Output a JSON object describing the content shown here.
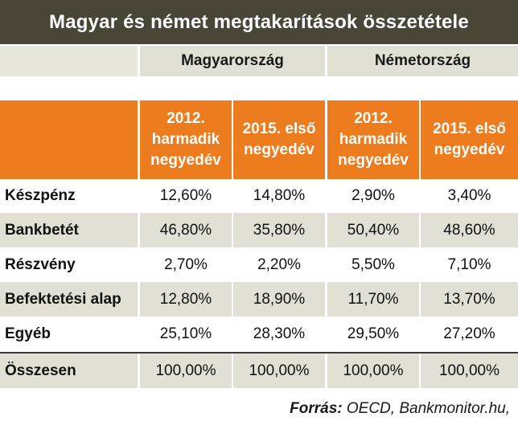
{
  "chart_data": {
    "type": "table",
    "title": "Magyar és német megtakarítások összetétele",
    "groups": [
      "Magyarország",
      "Németország"
    ],
    "columns": [
      "2012. harmadik negyedév",
      "2015. első negyedév",
      "2012. harmadik negyedév",
      "2015. első negyedév"
    ],
    "rows": [
      {
        "label": "Készpénz",
        "values": [
          "12,60%",
          "14,80%",
          "2,90%",
          "3,40%"
        ]
      },
      {
        "label": "Bankbetét",
        "values": [
          "46,80%",
          "35,80%",
          "50,40%",
          "48,60%"
        ]
      },
      {
        "label": "Részvény",
        "values": [
          "2,70%",
          "2,20%",
          "5,50%",
          "7,10%"
        ]
      },
      {
        "label": "Befektetési alap",
        "values": [
          "12,80%",
          "18,90%",
          "11,70%",
          "13,70%"
        ]
      },
      {
        "label": "Egyéb",
        "values": [
          "25,10%",
          "28,30%",
          "29,50%",
          "27,20%"
        ]
      },
      {
        "label": "Összesen",
        "values": [
          "100,00%",
          "100,00%",
          "100,00%",
          "100,00%"
        ]
      }
    ],
    "source_label": "Forrás:",
    "source_text": " OECD, Bankmonitor.hu,",
    "colors": {
      "title_bg": "#4a4637",
      "header_bg": "#ec7c1e",
      "band_bg": "#e2dfd4"
    }
  }
}
